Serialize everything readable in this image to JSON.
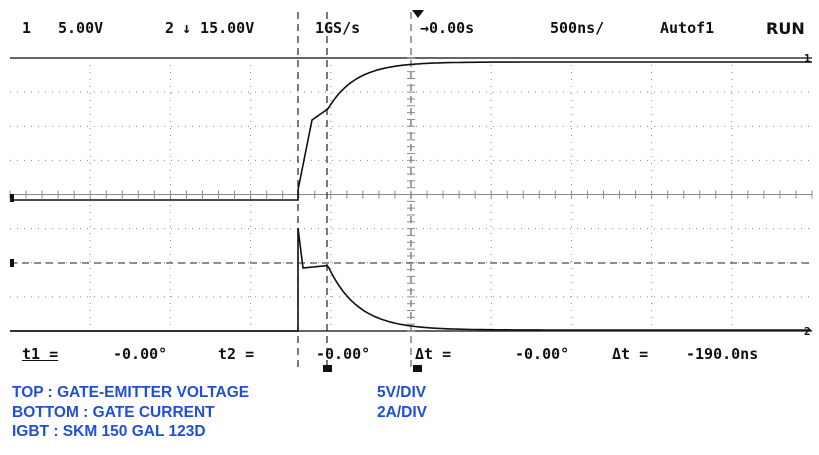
{
  "status": {
    "ch1_label": "1",
    "ch1_scale": "5.00V",
    "ch2_label": "2",
    "ch2_scale": "↓ 15.00V",
    "sample_rate": "1GS/s",
    "trigger_time": "→0.00s",
    "timebase": "500ns/",
    "trigger_mode": "Autof1",
    "run_state": "RUN"
  },
  "readout": {
    "t1_label": "t1 =",
    "t1_value": "-0.00°",
    "t2_label": "t2 =",
    "t2_value": "-0.00°",
    "dt1_label": "Δt =",
    "dt1_value": "-0.00°",
    "dt2_label": "Δt =",
    "dt2_value": "-190.0ns"
  },
  "caption": {
    "line1_left": "TOP : GATE-EMITTER VOLTAGE",
    "line1_right": "5V/DIV",
    "line2_left": "BOTTOM : GATE CURRENT",
    "line2_right": "2A/DIV",
    "line3_left": "IGBT : SKM 150 GAL 123D"
  },
  "colors": {
    "trace": "#111111",
    "grid": "#8a8a8a",
    "caption_text": "#1f4fd8"
  }
}
